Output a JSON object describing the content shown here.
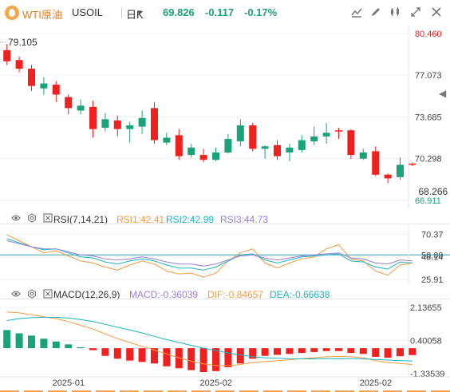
{
  "header": {
    "symbol": "WTI原油",
    "ticker": "USOIL",
    "period": "日K",
    "price": "69.826",
    "change": "-0.117",
    "change_pct": "-0.17%"
  },
  "colors": {
    "up": "#1aa37a",
    "down": "#f0201e",
    "rsi1": "#f39a3e",
    "rsi2": "#1bb2c2",
    "rsi3": "#9a7fd6",
    "baseline": "#2a9fb0"
  },
  "chart_data": [
    {
      "type": "candlestick",
      "name": "price",
      "ylim": [
        66.2,
        81.1
      ],
      "y_ticks": [
        "80.460",
        "77.073",
        "73.685",
        "70.298",
        "66.911"
      ],
      "y_tick_values": [
        80.46,
        77.073,
        73.685,
        70.298,
        66.911
      ],
      "annotations": [
        {
          "text": "79.105",
          "x": 0,
          "y": 79.105
        },
        {
          "text": "68.266",
          "x": 37,
          "y": 68.266
        }
      ],
      "candles": [
        {
          "o": 79.1,
          "c": 78.2,
          "h": 79.6,
          "l": 77.9
        },
        {
          "o": 78.3,
          "c": 77.6,
          "h": 78.6,
          "l": 77.3
        },
        {
          "o": 77.6,
          "c": 76.2,
          "h": 77.9,
          "l": 75.8
        },
        {
          "o": 76.0,
          "c": 76.4,
          "h": 76.9,
          "l": 75.5
        },
        {
          "o": 76.3,
          "c": 75.5,
          "h": 76.6,
          "l": 74.9
        },
        {
          "o": 75.3,
          "c": 74.4,
          "h": 75.5,
          "l": 73.9
        },
        {
          "o": 74.2,
          "c": 74.6,
          "h": 75.1,
          "l": 73.9
        },
        {
          "o": 74.5,
          "c": 72.7,
          "h": 75.0,
          "l": 72.0
        },
        {
          "o": 72.8,
          "c": 73.5,
          "h": 74.0,
          "l": 72.5
        },
        {
          "o": 73.4,
          "c": 72.7,
          "h": 73.8,
          "l": 72.1
        },
        {
          "o": 72.7,
          "c": 73.0,
          "h": 73.3,
          "l": 71.6
        },
        {
          "o": 72.9,
          "c": 73.6,
          "h": 74.2,
          "l": 72.3
        },
        {
          "o": 74.4,
          "c": 71.8,
          "h": 74.9,
          "l": 71.5
        },
        {
          "o": 71.6,
          "c": 72.0,
          "h": 72.4,
          "l": 71.4
        },
        {
          "o": 72.2,
          "c": 70.5,
          "h": 72.7,
          "l": 70.2
        },
        {
          "o": 70.6,
          "c": 71.2,
          "h": 71.5,
          "l": 70.4
        },
        {
          "o": 70.6,
          "c": 70.2,
          "h": 71.1,
          "l": 70.0
        },
        {
          "o": 70.2,
          "c": 70.8,
          "h": 71.2,
          "l": 70.1
        },
        {
          "o": 70.8,
          "c": 71.9,
          "h": 72.3,
          "l": 70.7
        },
        {
          "o": 71.7,
          "c": 73.0,
          "h": 73.5,
          "l": 71.3
        },
        {
          "o": 73.0,
          "c": 71.1,
          "h": 73.2,
          "l": 70.9
        },
        {
          "o": 71.1,
          "c": 71.3,
          "h": 71.4,
          "l": 70.3
        },
        {
          "o": 71.4,
          "c": 70.5,
          "h": 71.8,
          "l": 70.2
        },
        {
          "o": 70.8,
          "c": 71.2,
          "h": 71.5,
          "l": 70.1
        },
        {
          "o": 71.0,
          "c": 71.8,
          "h": 72.2,
          "l": 70.8
        },
        {
          "o": 71.7,
          "c": 72.1,
          "h": 72.9,
          "l": 71.4
        },
        {
          "o": 72.1,
          "c": 72.4,
          "h": 73.2,
          "l": 71.5
        },
        {
          "o": 72.6,
          "c": 72.5,
          "h": 72.8,
          "l": 71.9
        },
        {
          "o": 72.6,
          "c": 70.6,
          "h": 72.7,
          "l": 70.3
        },
        {
          "o": 70.3,
          "c": 70.8,
          "h": 71.1,
          "l": 70.2
        },
        {
          "o": 70.9,
          "c": 69.0,
          "h": 71.3,
          "l": 68.9
        },
        {
          "o": 69.0,
          "c": 68.7,
          "h": 69.1,
          "l": 68.3
        },
        {
          "o": 68.8,
          "c": 69.8,
          "h": 70.4,
          "l": 68.6
        },
        {
          "o": 69.9,
          "c": 69.8,
          "h": 70.0,
          "l": 69.7
        }
      ]
    },
    {
      "type": "line",
      "name": "rsi",
      "label": "RSI(7,14,21)",
      "legend": [
        {
          "label": "RSI1:42.41",
          "color": "#f39a3e"
        },
        {
          "label": "RSI2:42.99",
          "color": "#1bb2c2"
        },
        {
          "label": "RSI3:44.73",
          "color": "#9a7fd6"
        }
      ],
      "ylim": [
        21,
        81
      ],
      "y_ticks": [
        "70.37",
        "50.00",
        "48.14",
        "25.91"
      ],
      "y_tick_values": [
        70.37,
        50.0,
        48.14,
        25.91
      ],
      "baseline": 50,
      "series": [
        {
          "name": "RSI1",
          "color": "#f39a3e",
          "values": [
            70,
            64,
            58,
            52,
            54,
            49,
            44,
            42,
            38,
            35,
            40,
            44,
            41,
            34,
            31,
            32,
            28,
            32,
            44,
            52,
            56,
            42,
            37,
            42,
            46,
            48,
            56,
            60,
            46,
            44,
            34,
            30,
            40,
            42
          ]
        },
        {
          "name": "RSI2",
          "color": "#1bb2c2",
          "values": [
            66,
            62,
            58,
            55,
            56,
            52,
            48,
            47,
            43,
            41,
            44,
            46,
            44,
            40,
            37,
            37,
            35,
            38,
            44,
            50,
            51,
            45,
            42,
            45,
            48,
            49,
            50,
            51,
            44,
            43,
            38,
            36,
            43,
            42
          ]
        },
        {
          "name": "RSI3",
          "color": "#9a7fd6",
          "values": [
            64,
            61,
            58,
            56,
            56,
            53,
            50,
            49,
            46,
            45,
            46,
            48,
            46,
            43,
            41,
            41,
            39,
            41,
            45,
            49,
            50,
            47,
            45,
            47,
            49,
            50,
            51,
            52,
            47,
            46,
            42,
            41,
            45,
            44
          ]
        }
      ]
    },
    {
      "type": "bar+line",
      "name": "macd",
      "label": "MACD(12,26,9)",
      "legend": [
        {
          "label": "MACD:-0.36039",
          "color": "#9a7fd6"
        },
        {
          "label": "DIF:-0.84657",
          "color": "#f39a3e"
        },
        {
          "label": "DEA:-0.66638",
          "color": "#1bb2c2"
        }
      ],
      "ylim": [
        -1.5,
        2.6
      ],
      "y_ticks": [
        "2.13655",
        "0.40058",
        "-1.33539"
      ],
      "y_tick_values": [
        2.13655,
        0.40058,
        -1.33539
      ],
      "histogram": [
        0.95,
        0.78,
        0.66,
        0.5,
        0.35,
        0.2,
        0.05,
        -0.1,
        -0.4,
        -0.55,
        -0.65,
        -0.72,
        -0.8,
        -0.95,
        -1.05,
        -1.15,
        -1.25,
        -1.2,
        -1.0,
        -0.8,
        -0.55,
        -0.4,
        -0.35,
        -0.3,
        -0.25,
        -0.2,
        -0.15,
        -0.15,
        -0.25,
        -0.3,
        -0.45,
        -0.5,
        -0.42,
        -0.36
      ],
      "dif": [
        1.9,
        1.85,
        1.75,
        1.65,
        1.55,
        1.4,
        1.2,
        1.0,
        0.75,
        0.5,
        0.3,
        0.1,
        -0.1,
        -0.3,
        -0.5,
        -0.68,
        -0.82,
        -0.9,
        -0.92,
        -0.85,
        -0.75,
        -0.7,
        -0.65,
        -0.6,
        -0.55,
        -0.5,
        -0.45,
        -0.42,
        -0.45,
        -0.5,
        -0.65,
        -0.75,
        -0.8,
        -0.85
      ],
      "dea": [
        1.45,
        1.55,
        1.6,
        1.62,
        1.62,
        1.58,
        1.5,
        1.4,
        1.25,
        1.1,
        0.95,
        0.8,
        0.62,
        0.45,
        0.3,
        0.15,
        0.0,
        -0.12,
        -0.25,
        -0.35,
        -0.45,
        -0.5,
        -0.52,
        -0.55,
        -0.56,
        -0.56,
        -0.55,
        -0.54,
        -0.55,
        -0.56,
        -0.59,
        -0.62,
        -0.65,
        -0.67
      ]
    }
  ],
  "x_axis": {
    "labels": [
      {
        "text": "2025-01",
        "index": 5
      },
      {
        "text": "2025-02",
        "index": 17
      },
      {
        "text": "2025-02",
        "index": 30
      }
    ]
  }
}
